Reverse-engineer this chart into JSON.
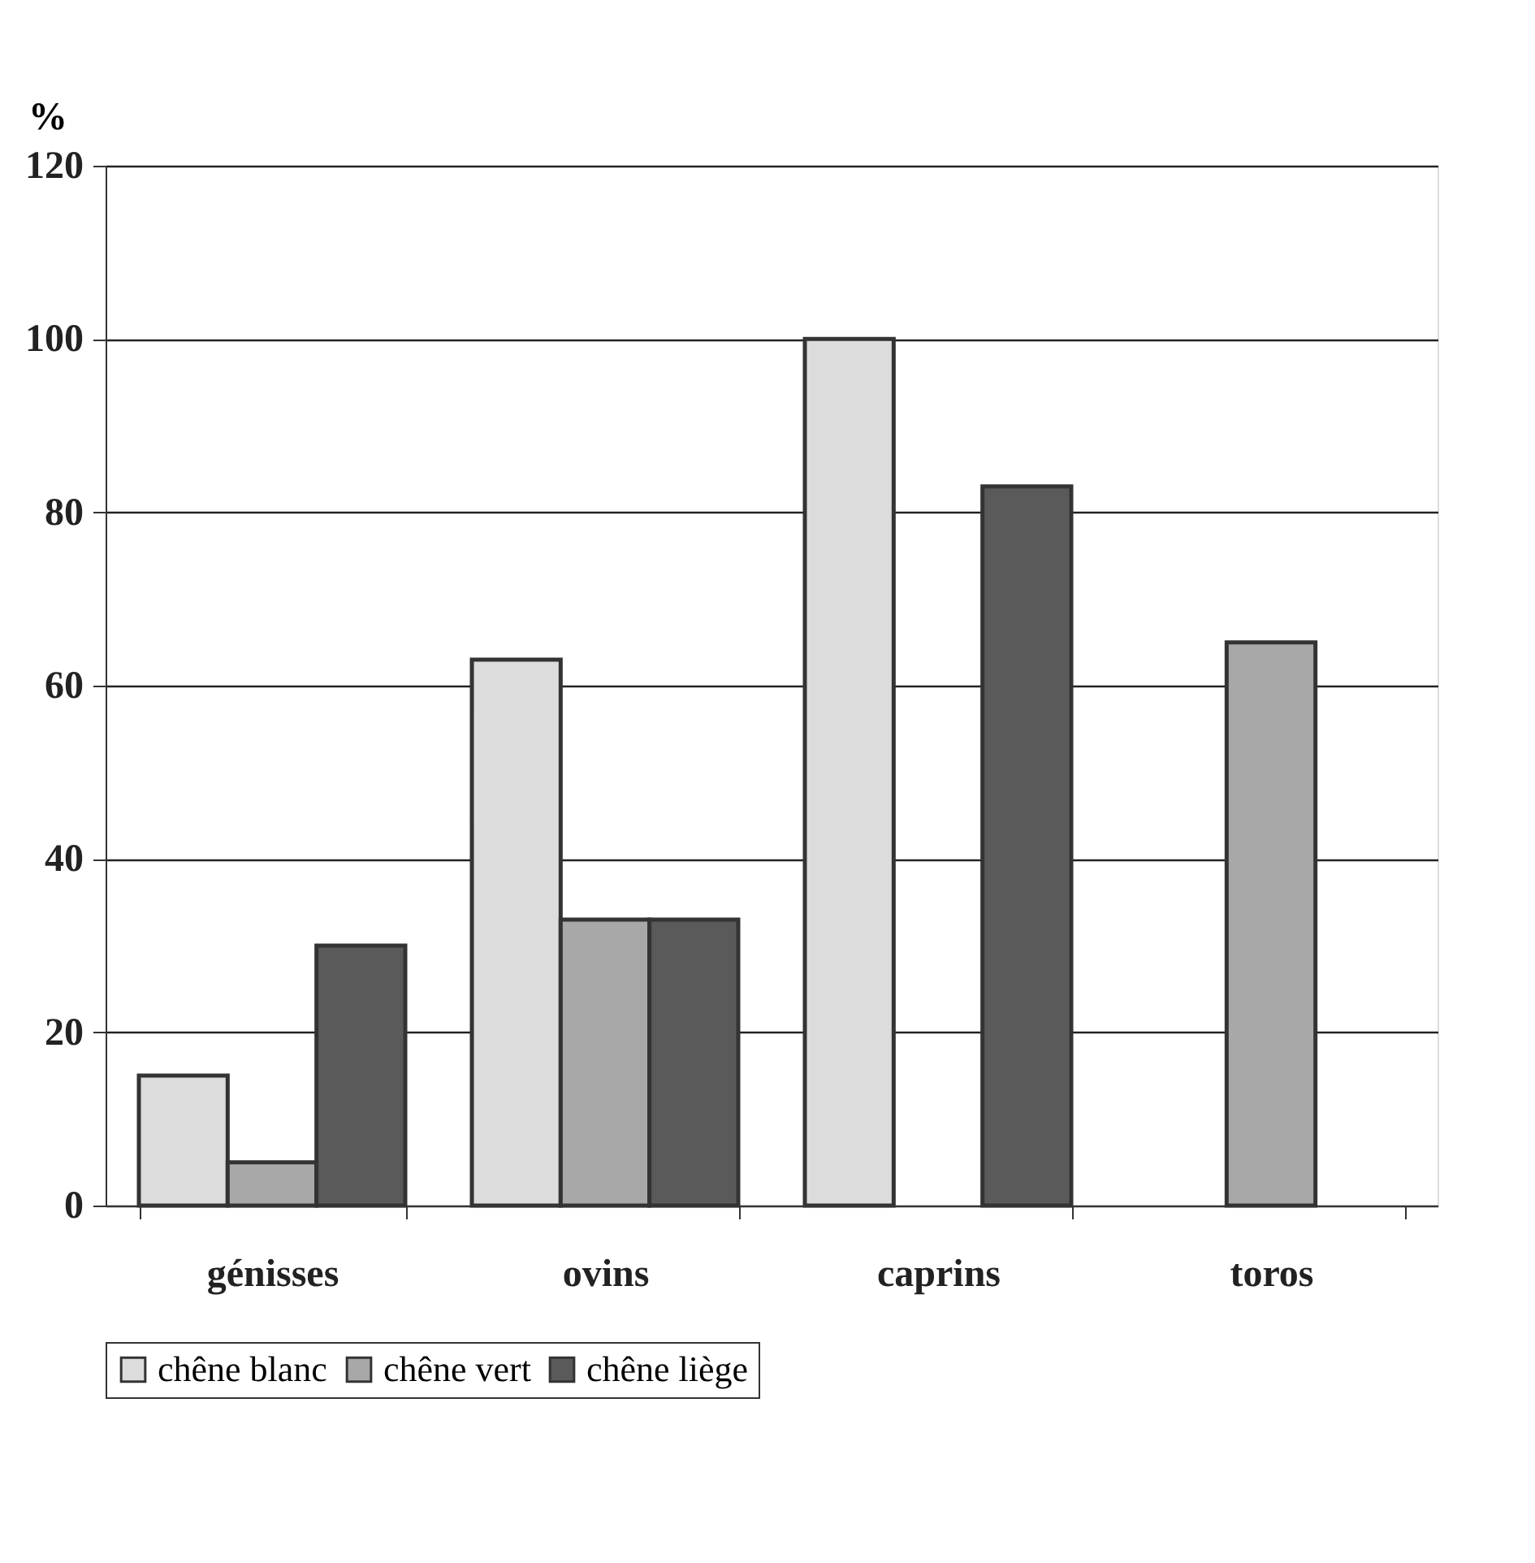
{
  "chart_data": {
    "type": "bar",
    "ylabel": "%",
    "categories": [
      "génisses",
      "ovins",
      "caprins",
      "toros"
    ],
    "series": [
      {
        "name": "chêne blanc",
        "color": "#dcdcdc",
        "values": [
          15,
          63,
          100,
          null
        ]
      },
      {
        "name": "chêne vert",
        "color": "#a8a8a8",
        "values": [
          5,
          33,
          null,
          65
        ]
      },
      {
        "name": "chêne liège",
        "color": "#5a5a5a",
        "values": [
          30,
          33,
          83,
          null
        ]
      }
    ],
    "ylim": [
      0,
      120
    ],
    "yticks": [
      0,
      20,
      40,
      60,
      80,
      100,
      120
    ],
    "grid": "y",
    "legend": "bottom"
  }
}
